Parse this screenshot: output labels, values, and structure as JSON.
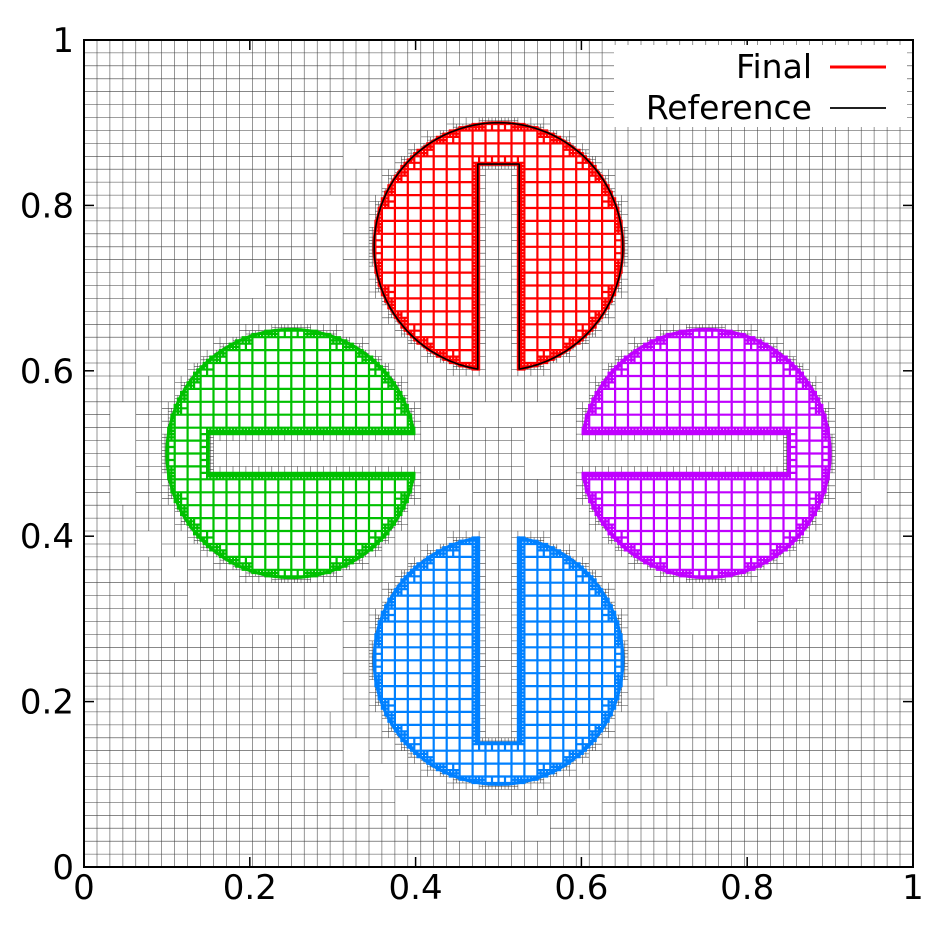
{
  "chart_data": {
    "type": "line",
    "title": "",
    "xlabel": "",
    "ylabel": "",
    "xlim": [
      0,
      1
    ],
    "ylim": [
      0,
      1
    ],
    "grid": "adaptive mesh (base 1/64, refined near interfaces)",
    "x_ticks": [
      "0",
      "0.2",
      "0.4",
      "0.6",
      "0.8",
      "1"
    ],
    "y_ticks": [
      "0",
      "0.2",
      "0.4",
      "0.6",
      "0.8",
      "1"
    ],
    "legend": {
      "position": "top-right",
      "entries": [
        {
          "label": "Final",
          "color": "#ff0000"
        },
        {
          "label": "Reference",
          "color": "#000000"
        }
      ]
    },
    "shape_parameters": {
      "radius": 0.15,
      "slot_width": 0.05,
      "slot_depth": 0.25
    },
    "series": [
      {
        "name": "Final",
        "color": "#ff0000",
        "center": [
          0.5,
          0.75
        ],
        "slot_direction": "down"
      },
      {
        "name": "Reference",
        "color": "#000000",
        "center": [
          0.5,
          0.75
        ],
        "slot_direction": "down"
      },
      {
        "color": "#00c000",
        "center": [
          0.25,
          0.5
        ],
        "slot_direction": "right"
      },
      {
        "color": "#0080ff",
        "center": [
          0.5,
          0.25
        ],
        "slot_direction": "up"
      },
      {
        "color": "#c000ff",
        "center": [
          0.75,
          0.5
        ],
        "slot_direction": "left"
      }
    ]
  }
}
